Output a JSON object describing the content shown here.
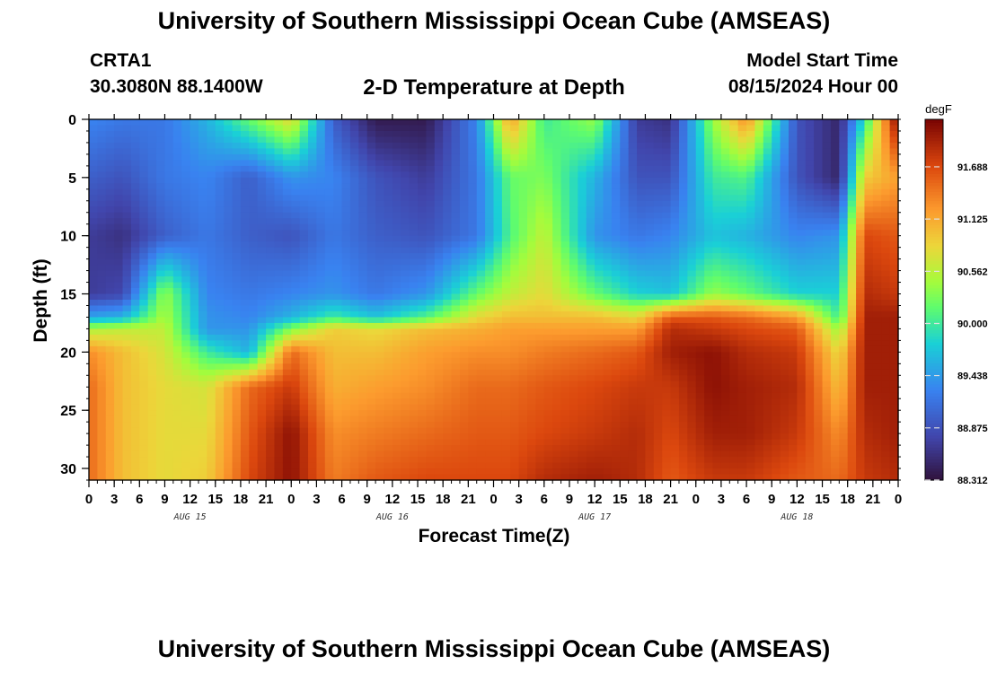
{
  "header": {
    "title": "University of Southern Mississippi Ocean Cube (AMSEAS)",
    "station_id": "CRTA1",
    "station_coords": "30.3080N  88.1400W",
    "model_start_label": "Model Start Time",
    "model_start_value": "08/15/2024 Hour 00"
  },
  "footer": {
    "title": "University of Southern Mississippi Ocean Cube (AMSEAS)"
  },
  "chart_data": {
    "type": "heatmap",
    "title": "2-D Temperature at Depth",
    "xlabel": "Forecast Time(Z)",
    "ylabel": "Depth (ft)",
    "x_range_hours": [
      0,
      96
    ],
    "x_ticks_hours": [
      0,
      3,
      6,
      9,
      12,
      15,
      18,
      21,
      24,
      27,
      30,
      33,
      36,
      39,
      42,
      45,
      48,
      51,
      54,
      57,
      60,
      63,
      66,
      69,
      72,
      75,
      78,
      81,
      84,
      87,
      90,
      93,
      96
    ],
    "x_tick_labels": [
      "0",
      "3",
      "6",
      "9",
      "12",
      "15",
      "18",
      "21",
      "0",
      "3",
      "6",
      "9",
      "12",
      "15",
      "18",
      "21",
      "0",
      "3",
      "6",
      "9",
      "12",
      "15",
      "18",
      "21",
      "0",
      "3",
      "6",
      "9",
      "12",
      "15",
      "18",
      "21",
      "0"
    ],
    "day_labels": [
      {
        "label": "AUG 15",
        "hour": 12
      },
      {
        "label": "AUG 16",
        "hour": 36
      },
      {
        "label": "AUG 17",
        "hour": 60
      },
      {
        "label": "AUG 18",
        "hour": 84
      }
    ],
    "y_range_ft": [
      0,
      31
    ],
    "y_ticks": [
      0,
      5,
      10,
      15,
      20,
      25,
      30
    ],
    "colorbar": {
      "unit": "degF",
      "min": 88.312,
      "max": 92.2,
      "ticks": [
        88.312,
        88.875,
        89.438,
        90.0,
        90.562,
        91.125,
        91.688
      ]
    },
    "profile_times_hours": [
      0,
      4,
      9,
      14,
      19,
      24,
      29,
      34,
      40,
      46,
      50,
      54,
      60,
      65,
      69,
      74,
      78,
      84,
      89,
      92,
      96
    ],
    "profile_depths_ft": [
      0,
      5,
      10,
      15,
      17,
      18,
      20,
      23,
      27,
      31
    ],
    "temperature_degF": [
      [
        89.3,
        89.0,
        88.7,
        88.7,
        89.5,
        90.5,
        91.3,
        91.5,
        91.5,
        91.5
      ],
      [
        89.2,
        88.9,
        88.6,
        88.8,
        89.6,
        90.6,
        91.0,
        91.0,
        91.0,
        91.0
      ],
      [
        89.2,
        89.2,
        89.0,
        90.4,
        90.5,
        90.6,
        90.7,
        90.8,
        90.8,
        90.8
      ],
      [
        89.6,
        89.3,
        89.2,
        89.3,
        89.4,
        89.4,
        90.0,
        90.7,
        90.8,
        90.9
      ],
      [
        90.2,
        89.0,
        89.0,
        89.2,
        89.3,
        89.4,
        89.6,
        91.5,
        91.6,
        91.7
      ],
      [
        90.8,
        89.4,
        88.9,
        89.3,
        89.6,
        90.3,
        91.5,
        91.8,
        92.1,
        92.1
      ],
      [
        89.0,
        89.3,
        89.2,
        89.4,
        90.0,
        90.9,
        91.0,
        91.1,
        91.3,
        91.4
      ],
      [
        88.4,
        88.9,
        89.0,
        89.2,
        89.7,
        90.8,
        91.0,
        91.2,
        91.4,
        91.6
      ],
      [
        88.4,
        88.7,
        88.9,
        89.4,
        90.1,
        91.0,
        91.2,
        91.3,
        91.5,
        91.7
      ],
      [
        89.3,
        89.2,
        89.2,
        90.2,
        90.8,
        91.1,
        91.3,
        91.5,
        91.6,
        91.7
      ],
      [
        91.2,
        90.2,
        90.1,
        90.6,
        91.0,
        91.2,
        91.3,
        91.5,
        91.6,
        91.7
      ],
      [
        90.0,
        90.3,
        90.6,
        90.8,
        91.0,
        91.2,
        91.4,
        91.6,
        91.7,
        91.9
      ],
      [
        90.4,
        89.6,
        89.4,
        90.2,
        91.0,
        91.2,
        91.5,
        91.7,
        91.8,
        92.0
      ],
      [
        88.7,
        88.9,
        89.2,
        89.8,
        90.8,
        91.2,
        91.6,
        91.8,
        91.9,
        91.9
      ],
      [
        88.6,
        88.9,
        89.3,
        89.7,
        91.6,
        91.9,
        92.0,
        91.8,
        91.7,
        91.6
      ],
      [
        90.4,
        90.0,
        89.7,
        90.4,
        91.6,
        91.8,
        92.1,
        92.1,
        92.0,
        91.8
      ],
      [
        91.3,
        90.1,
        89.6,
        90.2,
        91.5,
        91.7,
        91.9,
        92.0,
        92.0,
        91.8
      ],
      [
        88.9,
        88.9,
        89.3,
        89.8,
        91.2,
        91.6,
        91.8,
        91.9,
        91.8,
        91.6
      ],
      [
        88.5,
        88.5,
        89.4,
        89.8,
        90.0,
        90.4,
        90.8,
        91.0,
        91.3,
        91.5
      ],
      [
        89.9,
        90.9,
        91.7,
        91.9,
        92.0,
        92.0,
        92.0,
        92.0,
        91.9,
        91.8
      ],
      [
        92.2,
        91.2,
        91.6,
        91.8,
        92.0,
        92.0,
        92.0,
        92.0,
        92.0,
        91.9
      ]
    ]
  }
}
